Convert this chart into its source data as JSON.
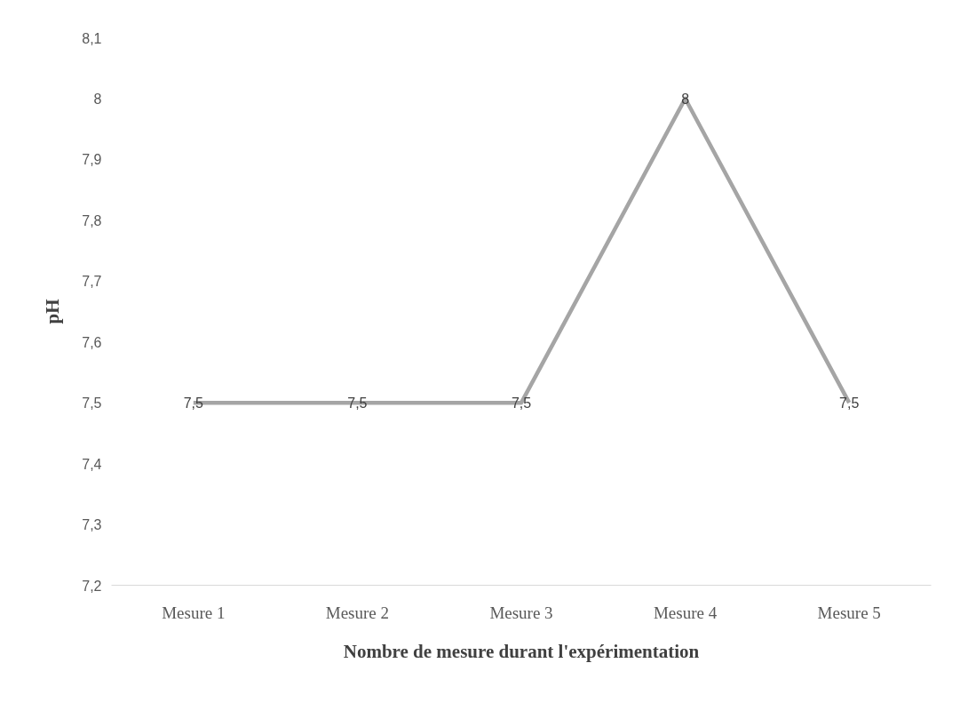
{
  "chart_data": {
    "type": "line",
    "xlabel": "Nombre de mesure durant l'expérimentation",
    "ylabel": "pH",
    "categories": [
      "Mesure 1",
      "Mesure 2",
      "Mesure 3",
      "Mesure 4",
      "Mesure 5"
    ],
    "series": [
      {
        "color": "#a5a5a5",
        "values": [
          7.5,
          7.5,
          7.5,
          8,
          7.5
        ],
        "value_labels": [
          "7,5",
          "7,5",
          "7,5",
          "8",
          "7,5"
        ]
      }
    ],
    "ylim": [
      7.2,
      8.1
    ],
    "yticks": [
      {
        "value": 7.2,
        "label": "7,2"
      },
      {
        "value": 7.3,
        "label": "7,3"
      },
      {
        "value": 7.4,
        "label": "7,4"
      },
      {
        "value": 7.5,
        "label": "7,5"
      },
      {
        "value": 7.6,
        "label": "7,6"
      },
      {
        "value": 7.7,
        "label": "7,7"
      },
      {
        "value": 7.8,
        "label": "7,8"
      },
      {
        "value": 7.9,
        "label": "7,9"
      },
      8,
      {
        "value": 8.1,
        "label": "8,1"
      }
    ],
    "grid": false,
    "marker": "none",
    "line_style": "solid"
  }
}
